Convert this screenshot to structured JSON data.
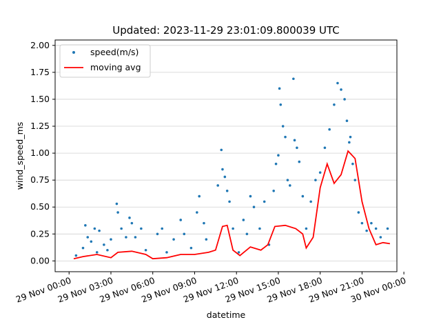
{
  "chart_data": {
    "type": "scatter",
    "title": "Updated: 2023-11-29 23:01:09.800039 UTC",
    "xlabel": "datetime",
    "ylabel": "wind_speed_ms",
    "xlim": [
      "2023-11-28T23:00",
      "2023-11-29T23:30"
    ],
    "ylim": [
      -0.1,
      2.05
    ],
    "x_ticks": [
      "29 Nov 00:00",
      "29 Nov 03:00",
      "29 Nov 06:00",
      "29 Nov 09:00",
      "29 Nov 12:00",
      "29 Nov 15:00",
      "29 Nov 18:00",
      "29 Nov 21:00",
      "30 Nov 00:00"
    ],
    "y_ticks": [
      "0.00",
      "0.25",
      "0.50",
      "0.75",
      "1.00",
      "1.25",
      "1.50",
      "1.75",
      "2.00"
    ],
    "grid": "horizontal",
    "legend_position": "top-left",
    "colors": {
      "scatter": "#1f77b4",
      "line": "#ff0000",
      "grid": "#d0d0d0"
    },
    "series": [
      {
        "name": "speed(m/s)",
        "kind": "scatter",
        "points": [
          [
            "2023-11-29T00:30",
            0.05
          ],
          [
            "2023-11-29T01:00",
            0.12
          ],
          [
            "2023-11-29T01:10",
            0.33
          ],
          [
            "2023-11-29T01:20",
            0.22
          ],
          [
            "2023-11-29T01:35",
            0.18
          ],
          [
            "2023-11-29T01:50",
            0.3
          ],
          [
            "2023-11-29T02:00",
            0.08
          ],
          [
            "2023-11-29T02:10",
            0.28
          ],
          [
            "2023-11-29T02:30",
            0.15
          ],
          [
            "2023-11-29T02:45",
            0.1
          ],
          [
            "2023-11-29T03:00",
            0.2
          ],
          [
            "2023-11-29T03:25",
            0.53
          ],
          [
            "2023-11-29T03:30",
            0.45
          ],
          [
            "2023-11-29T03:45",
            0.3
          ],
          [
            "2023-11-29T04:05",
            0.22
          ],
          [
            "2023-11-29T04:20",
            0.4
          ],
          [
            "2023-11-29T04:30",
            0.35
          ],
          [
            "2023-11-29T04:45",
            0.22
          ],
          [
            "2023-11-29T05:10",
            0.3
          ],
          [
            "2023-11-29T05:30",
            0.1
          ],
          [
            "2023-11-29T06:20",
            0.25
          ],
          [
            "2023-11-29T06:40",
            0.3
          ],
          [
            "2023-11-29T07:00",
            0.08
          ],
          [
            "2023-11-29T07:30",
            0.2
          ],
          [
            "2023-11-29T08:00",
            0.38
          ],
          [
            "2023-11-29T08:15",
            0.25
          ],
          [
            "2023-11-29T08:45",
            0.12
          ],
          [
            "2023-11-29T09:10",
            0.45
          ],
          [
            "2023-11-29T09:20",
            0.6
          ],
          [
            "2023-11-29T09:40",
            0.35
          ],
          [
            "2023-11-29T09:50",
            0.2
          ],
          [
            "2023-11-29T10:40",
            0.7
          ],
          [
            "2023-11-29T10:55",
            1.03
          ],
          [
            "2023-11-29T11:00",
            0.85
          ],
          [
            "2023-11-29T11:10",
            0.78
          ],
          [
            "2023-11-29T11:20",
            0.65
          ],
          [
            "2023-11-29T11:30",
            0.55
          ],
          [
            "2023-11-29T11:45",
            0.3
          ],
          [
            "2023-11-29T12:10",
            0.08
          ],
          [
            "2023-11-29T12:30",
            0.38
          ],
          [
            "2023-11-29T12:45",
            0.25
          ],
          [
            "2023-11-29T13:00",
            0.6
          ],
          [
            "2023-11-29T13:15",
            0.5
          ],
          [
            "2023-11-29T13:40",
            0.3
          ],
          [
            "2023-11-29T14:00",
            0.55
          ],
          [
            "2023-11-29T14:20",
            0.15
          ],
          [
            "2023-11-29T14:40",
            0.65
          ],
          [
            "2023-11-29T14:50",
            0.9
          ],
          [
            "2023-11-29T15:00",
            0.98
          ],
          [
            "2023-11-29T15:05",
            1.6
          ],
          [
            "2023-11-29T15:10",
            1.45
          ],
          [
            "2023-11-29T15:20",
            1.25
          ],
          [
            "2023-11-29T15:30",
            1.15
          ],
          [
            "2023-11-29T15:40",
            0.75
          ],
          [
            "2023-11-29T15:50",
            0.7
          ],
          [
            "2023-11-29T16:05",
            1.69
          ],
          [
            "2023-11-29T16:10",
            1.12
          ],
          [
            "2023-11-29T16:20",
            1.05
          ],
          [
            "2023-11-29T16:30",
            0.92
          ],
          [
            "2023-11-29T16:45",
            0.6
          ],
          [
            "2023-11-29T17:00",
            0.3
          ],
          [
            "2023-11-29T17:20",
            0.55
          ],
          [
            "2023-11-29T17:40",
            0.75
          ],
          [
            "2023-11-29T18:00",
            0.82
          ],
          [
            "2023-11-29T18:20",
            1.05
          ],
          [
            "2023-11-29T18:40",
            1.22
          ],
          [
            "2023-11-29T19:00",
            1.45
          ],
          [
            "2023-11-29T19:15",
            1.65
          ],
          [
            "2023-11-29T19:30",
            1.59
          ],
          [
            "2023-11-29T19:45",
            1.5
          ],
          [
            "2023-11-29T19:55",
            1.3
          ],
          [
            "2023-11-29T20:05",
            1.1
          ],
          [
            "2023-11-29T20:10",
            1.15
          ],
          [
            "2023-11-29T20:20",
            0.9
          ],
          [
            "2023-11-29T20:30",
            0.75
          ],
          [
            "2023-11-29T20:45",
            0.45
          ],
          [
            "2023-11-29T21:00",
            0.35
          ],
          [
            "2023-11-29T21:20",
            0.28
          ],
          [
            "2023-11-29T21:40",
            0.35
          ],
          [
            "2023-11-29T22:00",
            0.3
          ],
          [
            "2023-11-29T22:20",
            0.22
          ],
          [
            "2023-11-29T22:50",
            0.3
          ]
        ]
      },
      {
        "name": "moving avg",
        "kind": "line",
        "points": [
          [
            "2023-11-29T00:20",
            0.02
          ],
          [
            "2023-11-29T01:00",
            0.04
          ],
          [
            "2023-11-29T02:00",
            0.06
          ],
          [
            "2023-11-29T03:00",
            0.03
          ],
          [
            "2023-11-29T03:30",
            0.08
          ],
          [
            "2023-11-29T04:30",
            0.09
          ],
          [
            "2023-11-29T05:30",
            0.06
          ],
          [
            "2023-11-29T06:00",
            0.02
          ],
          [
            "2023-11-29T07:00",
            0.03
          ],
          [
            "2023-11-29T08:00",
            0.06
          ],
          [
            "2023-11-29T09:00",
            0.06
          ],
          [
            "2023-11-29T10:00",
            0.08
          ],
          [
            "2023-11-29T10:30",
            0.1
          ],
          [
            "2023-11-29T11:00",
            0.32
          ],
          [
            "2023-11-29T11:20",
            0.33
          ],
          [
            "2023-11-29T11:45",
            0.1
          ],
          [
            "2023-11-29T12:15",
            0.05
          ],
          [
            "2023-11-29T13:00",
            0.13
          ],
          [
            "2023-11-29T13:45",
            0.1
          ],
          [
            "2023-11-29T14:15",
            0.15
          ],
          [
            "2023-11-29T14:45",
            0.32
          ],
          [
            "2023-11-29T15:30",
            0.33
          ],
          [
            "2023-11-29T16:15",
            0.3
          ],
          [
            "2023-11-29T16:45",
            0.25
          ],
          [
            "2023-11-29T17:00",
            0.12
          ],
          [
            "2023-11-29T17:30",
            0.22
          ],
          [
            "2023-11-29T18:00",
            0.68
          ],
          [
            "2023-11-29T18:30",
            0.9
          ],
          [
            "2023-11-29T19:00",
            0.72
          ],
          [
            "2023-11-29T19:30",
            0.8
          ],
          [
            "2023-11-29T20:00",
            1.02
          ],
          [
            "2023-11-29T20:30",
            0.95
          ],
          [
            "2023-11-29T21:00",
            0.55
          ],
          [
            "2023-11-29T21:30",
            0.3
          ],
          [
            "2023-11-29T22:00",
            0.15
          ],
          [
            "2023-11-29T22:30",
            0.17
          ],
          [
            "2023-11-29T23:00",
            0.16
          ]
        ]
      }
    ]
  }
}
